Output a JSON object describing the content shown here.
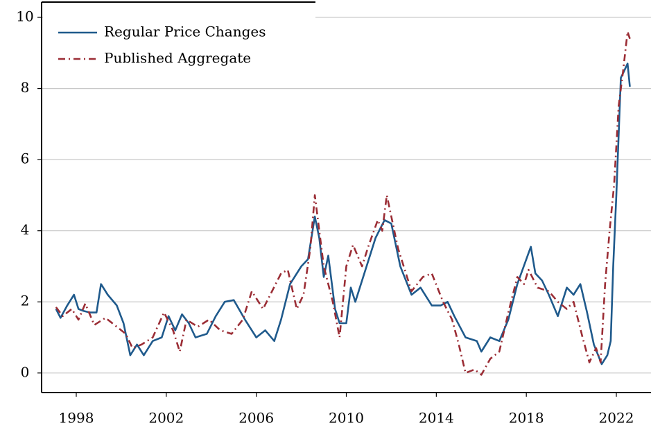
{
  "chart_data": {
    "type": "line",
    "series": [
      {
        "name": "Regular Price Changes",
        "color": "#1f5a8c",
        "style": "solid",
        "x": [
          1997.1,
          1997.3,
          1997.6,
          1997.9,
          1998.1,
          1998.3,
          1998.6,
          1998.9,
          1999.1,
          1999.4,
          1999.8,
          2000.1,
          2000.4,
          2000.7,
          2001.0,
          2001.4,
          2001.8,
          2002.1,
          2002.4,
          2002.7,
          2003.0,
          2003.3,
          2003.8,
          2004.2,
          2004.6,
          2005.0,
          2005.5,
          2006.0,
          2006.4,
          2006.8,
          2007.1,
          2007.5,
          2008.0,
          2008.3,
          2008.6,
          2008.8,
          2009.0,
          2009.2,
          2009.5,
          2009.7,
          2010.0,
          2010.2,
          2010.4,
          2010.6,
          2011.0,
          2011.3,
          2011.7,
          2012.0,
          2012.4,
          2012.9,
          2013.3,
          2013.8,
          2014.2,
          2014.5,
          2014.8,
          2015.3,
          2015.8,
          2016.0,
          2016.4,
          2016.8,
          2017.2,
          2017.6,
          2018.0,
          2018.2,
          2018.4,
          2018.7,
          2019.0,
          2019.4,
          2019.8,
          2020.1,
          2020.4,
          2020.7,
          2021.0,
          2021.35,
          2021.6,
          2021.75,
          2021.86,
          2022.0,
          2022.2,
          2022.35,
          2022.5,
          2022.6
        ],
        "values": [
          1.8,
          1.55,
          1.9,
          2.2,
          1.8,
          1.75,
          1.7,
          1.7,
          2.5,
          2.2,
          1.9,
          1.4,
          0.5,
          0.8,
          0.5,
          0.9,
          1.0,
          1.6,
          1.2,
          1.65,
          1.4,
          1.0,
          1.1,
          1.6,
          2.0,
          2.05,
          1.5,
          1.0,
          1.2,
          0.9,
          1.5,
          2.5,
          3.0,
          3.2,
          4.4,
          3.8,
          2.7,
          3.3,
          1.8,
          1.4,
          1.4,
          2.4,
          2.0,
          2.4,
          3.2,
          3.8,
          4.3,
          4.2,
          3.0,
          2.2,
          2.4,
          1.9,
          1.9,
          2.0,
          1.6,
          1.0,
          0.9,
          0.6,
          1.0,
          0.9,
          1.5,
          2.5,
          3.2,
          3.55,
          2.8,
          2.6,
          2.2,
          1.6,
          2.4,
          2.2,
          2.5,
          1.7,
          0.8,
          0.25,
          0.5,
          0.9,
          3.0,
          5.0,
          8.3,
          8.5,
          8.7,
          8.05
        ]
      },
      {
        "name": "Published Aggregate",
        "color": "#9b2d35",
        "style": "dashdot",
        "x": [
          1997.1,
          1997.4,
          1997.8,
          1998.1,
          1998.4,
          1998.8,
          1999.3,
          1999.8,
          2000.2,
          2000.5,
          2000.9,
          2001.4,
          2001.9,
          2002.3,
          2002.6,
          2002.9,
          2003.4,
          2003.9,
          2004.4,
          2004.9,
          2005.4,
          2005.8,
          2006.3,
          2006.7,
          2007.1,
          2007.4,
          2007.8,
          2008.1,
          2008.4,
          2008.6,
          2009.0,
          2009.4,
          2009.7,
          2010.0,
          2010.3,
          2010.7,
          2011.0,
          2011.4,
          2011.6,
          2011.8,
          2012.3,
          2012.9,
          2013.4,
          2013.8,
          2014.3,
          2014.7,
          2015.0,
          2015.3,
          2015.7,
          2016.0,
          2016.4,
          2016.8,
          2017.2,
          2017.6,
          2017.9,
          2018.1,
          2018.5,
          2019.0,
          2019.4,
          2019.8,
          2020.1,
          2020.5,
          2020.8,
          2021.1,
          2021.3,
          2021.5,
          2021.7,
          2021.9,
          2022.1,
          2022.3,
          2022.5,
          2022.6
        ],
        "values": [
          1.85,
          1.6,
          1.8,
          1.5,
          1.95,
          1.35,
          1.55,
          1.3,
          1.1,
          0.7,
          0.8,
          1.0,
          1.7,
          1.2,
          0.6,
          1.5,
          1.3,
          1.5,
          1.2,
          1.1,
          1.5,
          2.3,
          1.8,
          2.3,
          2.8,
          2.9,
          1.8,
          2.2,
          3.5,
          5.0,
          3.0,
          2.0,
          1.0,
          3.0,
          3.6,
          3.0,
          3.6,
          4.3,
          4.0,
          5.0,
          3.5,
          2.3,
          2.7,
          2.8,
          2.0,
          1.5,
          0.8,
          0.0,
          0.1,
          -0.05,
          0.4,
          0.6,
          1.7,
          2.7,
          2.5,
          2.9,
          2.4,
          2.3,
          2.0,
          1.8,
          2.0,
          1.0,
          0.3,
          0.7,
          0.3,
          2.5,
          4.0,
          5.3,
          7.5,
          8.5,
          9.6,
          9.4
        ]
      }
    ],
    "xlim": [
      1996.46,
      2023.54
    ],
    "ylim": [
      -0.55,
      10.43
    ],
    "xticks": [
      1998,
      2002,
      2006,
      2010,
      2014,
      2018,
      2022
    ],
    "yticks": [
      0,
      2,
      4,
      6,
      8,
      10
    ],
    "grid": true,
    "legend": "upper-left"
  }
}
